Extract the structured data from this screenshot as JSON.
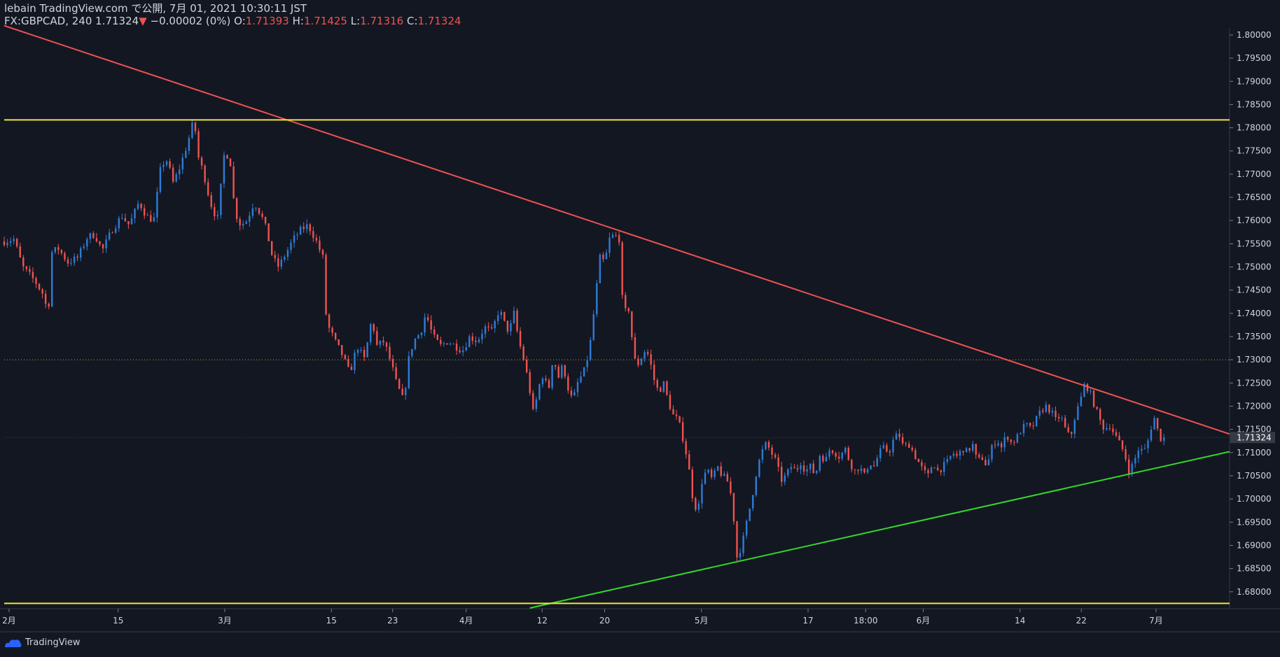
{
  "header": {
    "publish_line": "lebain TradingView.com で公開, 7月 01, 2021 10:30:11 JST",
    "symbol": "FX:GBPCAD, 240",
    "last": "1.71324",
    "change_arrow": "▼",
    "change": "−0.00002 (0%)",
    "o_label": "O:",
    "o": "1.71393",
    "h_label": "H:",
    "h": "1.71425",
    "l_label": "L:",
    "l": "1.71316",
    "c_label": "C:",
    "c": "1.71324"
  },
  "footer": {
    "brand": "TradingView",
    "logo_icon": "tradingview-logo-icon"
  },
  "colors": {
    "background": "#131722",
    "up": "#2e7cd6",
    "down": "#ef5350",
    "resistance": "#ef5350",
    "support": "#33d62b",
    "horizontal": "#f2e338",
    "dotted": "#b8a73a",
    "axis_text": "#d1d4dc"
  },
  "chart_data": {
    "type": "candlestick",
    "symbol": "FX:GBPCAD",
    "timeframe": "240",
    "last_price": 1.71324,
    "ylim": [
      1.6765,
      1.8015
    ],
    "y_ticks": [
      1.68,
      1.685,
      1.69,
      1.695,
      1.7,
      1.705,
      1.71,
      1.715,
      1.72,
      1.725,
      1.73,
      1.735,
      1.74,
      1.745,
      1.75,
      1.755,
      1.76,
      1.765,
      1.77,
      1.775,
      1.78,
      1.785,
      1.79,
      1.795,
      1.8
    ],
    "y_tick_labels": [
      "1.68000",
      "1.68500",
      "1.69000",
      "1.69500",
      "1.70000",
      "1.70500",
      "1.71000",
      "1.71500",
      "1.72000",
      "1.72500",
      "1.73000",
      "1.73500",
      "1.74000",
      "1.74500",
      "1.75000",
      "1.75500",
      "1.76000",
      "1.76500",
      "1.77000",
      "1.77500",
      "1.78000",
      "1.78500",
      "1.79000",
      "1.79500",
      "1.80000"
    ],
    "xlim": [
      0,
      1000
    ],
    "x_ticks": [
      {
        "pos": 4,
        "label": "2月"
      },
      {
        "pos": 93,
        "label": "15"
      },
      {
        "pos": 180,
        "label": "3月"
      },
      {
        "pos": 267,
        "label": "15"
      },
      {
        "pos": 317,
        "label": "23"
      },
      {
        "pos": 377,
        "label": "4月"
      },
      {
        "pos": 439,
        "label": "12"
      },
      {
        "pos": 490,
        "label": "20"
      },
      {
        "pos": 569,
        "label": "5月"
      },
      {
        "pos": 656,
        "label": "17"
      },
      {
        "pos": 703,
        "label": "18:00"
      },
      {
        "pos": 750,
        "label": "6月"
      },
      {
        "pos": 829,
        "label": "14"
      },
      {
        "pos": 879,
        "label": "22"
      },
      {
        "pos": 940,
        "label": "7月"
      }
    ],
    "anchors": [
      [
        0,
        1.7555
      ],
      [
        8,
        1.756
      ],
      [
        15,
        1.75
      ],
      [
        25,
        1.747
      ],
      [
        32,
        1.744
      ],
      [
        36,
        1.7395
      ],
      [
        38,
        1.753
      ],
      [
        44,
        1.754
      ],
      [
        52,
        1.751
      ],
      [
        60,
        1.752
      ],
      [
        68,
        1.7565
      ],
      [
        74,
        1.757
      ],
      [
        80,
        1.7535
      ],
      [
        88,
        1.758
      ],
      [
        96,
        1.761
      ],
      [
        102,
        1.759
      ],
      [
        110,
        1.764
      ],
      [
        116,
        1.761
      ],
      [
        122,
        1.76
      ],
      [
        128,
        1.772
      ],
      [
        133,
        1.773
      ],
      [
        138,
        1.768
      ],
      [
        144,
        1.772
      ],
      [
        150,
        1.777
      ],
      [
        155,
        1.782
      ],
      [
        158,
        1.774
      ],
      [
        163,
        1.77
      ],
      [
        168,
        1.764
      ],
      [
        174,
        1.76
      ],
      [
        180,
        1.7755
      ],
      [
        185,
        1.772
      ],
      [
        188,
        1.762
      ],
      [
        193,
        1.759
      ],
      [
        198,
        1.76
      ],
      [
        204,
        1.764
      ],
      [
        210,
        1.761
      ],
      [
        214,
        1.758
      ],
      [
        219,
        1.752
      ],
      [
        224,
        1.75
      ],
      [
        230,
        1.753
      ],
      [
        236,
        1.756
      ],
      [
        242,
        1.758
      ],
      [
        248,
        1.759
      ],
      [
        254,
        1.756
      ],
      [
        260,
        1.752
      ],
      [
        263,
        1.738
      ],
      [
        270,
        1.734
      ],
      [
        276,
        1.731
      ],
      [
        282,
        1.727
      ],
      [
        288,
        1.733
      ],
      [
        294,
        1.73
      ],
      [
        300,
        1.739
      ],
      [
        304,
        1.733
      ],
      [
        310,
        1.734
      ],
      [
        316,
        1.729
      ],
      [
        320,
        1.725
      ],
      [
        326,
        1.721
      ],
      [
        330,
        1.73
      ],
      [
        334,
        1.734
      ],
      [
        340,
        1.736
      ],
      [
        344,
        1.74
      ],
      [
        350,
        1.735
      ],
      [
        356,
        1.733
      ],
      [
        362,
        1.734
      ],
      [
        368,
        1.733
      ],
      [
        374,
        1.732
      ],
      [
        380,
        1.735
      ],
      [
        386,
        1.734
      ],
      [
        392,
        1.737
      ],
      [
        398,
        1.736
      ],
      [
        404,
        1.741
      ],
      [
        408,
        1.738
      ],
      [
        412,
        1.736
      ],
      [
        416,
        1.74
      ],
      [
        420,
        1.734
      ],
      [
        424,
        1.73
      ],
      [
        428,
        1.725
      ],
      [
        432,
        1.718
      ],
      [
        436,
        1.724
      ],
      [
        440,
        1.727
      ],
      [
        444,
        1.723
      ],
      [
        448,
        1.731
      ],
      [
        452,
        1.726
      ],
      [
        456,
        1.729
      ],
      [
        460,
        1.724
      ],
      [
        464,
        1.721
      ],
      [
        468,
        1.725
      ],
      [
        474,
        1.728
      ],
      [
        478,
        1.733
      ],
      [
        482,
        1.742
      ],
      [
        486,
        1.752
      ],
      [
        490,
        1.751
      ],
      [
        494,
        1.756
      ],
      [
        498,
        1.757
      ],
      [
        502,
        1.756
      ],
      [
        505,
        1.74
      ],
      [
        510,
        1.741
      ],
      [
        514,
        1.73
      ],
      [
        518,
        1.729
      ],
      [
        522,
        1.732
      ],
      [
        526,
        1.731
      ],
      [
        530,
        1.726
      ],
      [
        534,
        1.723
      ],
      [
        538,
        1.725
      ],
      [
        542,
        1.721
      ],
      [
        546,
        1.718
      ],
      [
        550,
        1.717
      ],
      [
        554,
        1.713
      ],
      [
        558,
        1.708
      ],
      [
        562,
        1.7
      ],
      [
        566,
        1.697
      ],
      [
        570,
        1.705
      ],
      [
        574,
        1.706
      ],
      [
        578,
        1.704
      ],
      [
        582,
        1.707
      ],
      [
        586,
        1.705
      ],
      [
        590,
        1.704
      ],
      [
        594,
        1.7
      ],
      [
        598,
        1.6875
      ],
      [
        602,
        1.69
      ],
      [
        606,
        1.695
      ],
      [
        610,
        1.7
      ],
      [
        614,
        1.706
      ],
      [
        618,
        1.71
      ],
      [
        622,
        1.712
      ],
      [
        626,
        1.71
      ],
      [
        630,
        1.708
      ],
      [
        634,
        1.704
      ],
      [
        638,
        1.705
      ],
      [
        642,
        1.707
      ],
      [
        646,
        1.706
      ],
      [
        650,
        1.708
      ],
      [
        654,
        1.706
      ],
      [
        658,
        1.707
      ],
      [
        662,
        1.705
      ],
      [
        666,
        1.71
      ],
      [
        670,
        1.708
      ],
      [
        674,
        1.711
      ],
      [
        678,
        1.71
      ],
      [
        682,
        1.709
      ],
      [
        686,
        1.711
      ],
      [
        690,
        1.708
      ],
      [
        694,
        1.706
      ],
      [
        698,
        1.707
      ],
      [
        702,
        1.705
      ],
      [
        706,
        1.708
      ],
      [
        710,
        1.707
      ],
      [
        714,
        1.71
      ],
      [
        718,
        1.711
      ],
      [
        722,
        1.71
      ],
      [
        726,
        1.713
      ],
      [
        730,
        1.714
      ],
      [
        734,
        1.711
      ],
      [
        738,
        1.712
      ],
      [
        742,
        1.71
      ],
      [
        746,
        1.708
      ],
      [
        750,
        1.706
      ],
      [
        754,
        1.705
      ],
      [
        758,
        1.708
      ],
      [
        762,
        1.706
      ],
      [
        766,
        1.707
      ],
      [
        770,
        1.708
      ],
      [
        774,
        1.71
      ],
      [
        778,
        1.709
      ],
      [
        782,
        1.711
      ],
      [
        786,
        1.71
      ],
      [
        790,
        1.712
      ],
      [
        794,
        1.708
      ],
      [
        798,
        1.709
      ],
      [
        802,
        1.707
      ],
      [
        806,
        1.711
      ],
      [
        810,
        1.713
      ],
      [
        814,
        1.711
      ],
      [
        818,
        1.714
      ],
      [
        822,
        1.712
      ],
      [
        826,
        1.713
      ],
      [
        830,
        1.715
      ],
      [
        834,
        1.716
      ],
      [
        838,
        1.715
      ],
      [
        842,
        1.717
      ],
      [
        846,
        1.719
      ],
      [
        850,
        1.72
      ],
      [
        854,
        1.719
      ],
      [
        858,
        1.717
      ],
      [
        862,
        1.718
      ],
      [
        866,
        1.715
      ],
      [
        870,
        1.713
      ],
      [
        874,
        1.718
      ],
      [
        878,
        1.721
      ],
      [
        882,
        1.725
      ],
      [
        886,
        1.723
      ],
      [
        890,
        1.72
      ],
      [
        894,
        1.717
      ],
      [
        898,
        1.715
      ],
      [
        902,
        1.716
      ],
      [
        906,
        1.714
      ],
      [
        910,
        1.712
      ],
      [
        914,
        1.71
      ],
      [
        918,
        1.706
      ],
      [
        922,
        1.708
      ],
      [
        926,
        1.711
      ],
      [
        930,
        1.71
      ],
      [
        934,
        1.713
      ],
      [
        938,
        1.718
      ],
      [
        941,
        1.715
      ],
      [
        944,
        1.713
      ],
      [
        947,
        1.7132
      ]
    ],
    "resistance_line": {
      "from": [
        0,
        1.802
      ],
      "to": [
        1000,
        1.714
      ]
    },
    "support_line": {
      "from": [
        429,
        1.6765
      ],
      "to": [
        1000,
        1.7102
      ]
    },
    "horizontal_levels": [
      1.7817,
      1.6775
    ],
    "dotted_level": 1.73
  }
}
